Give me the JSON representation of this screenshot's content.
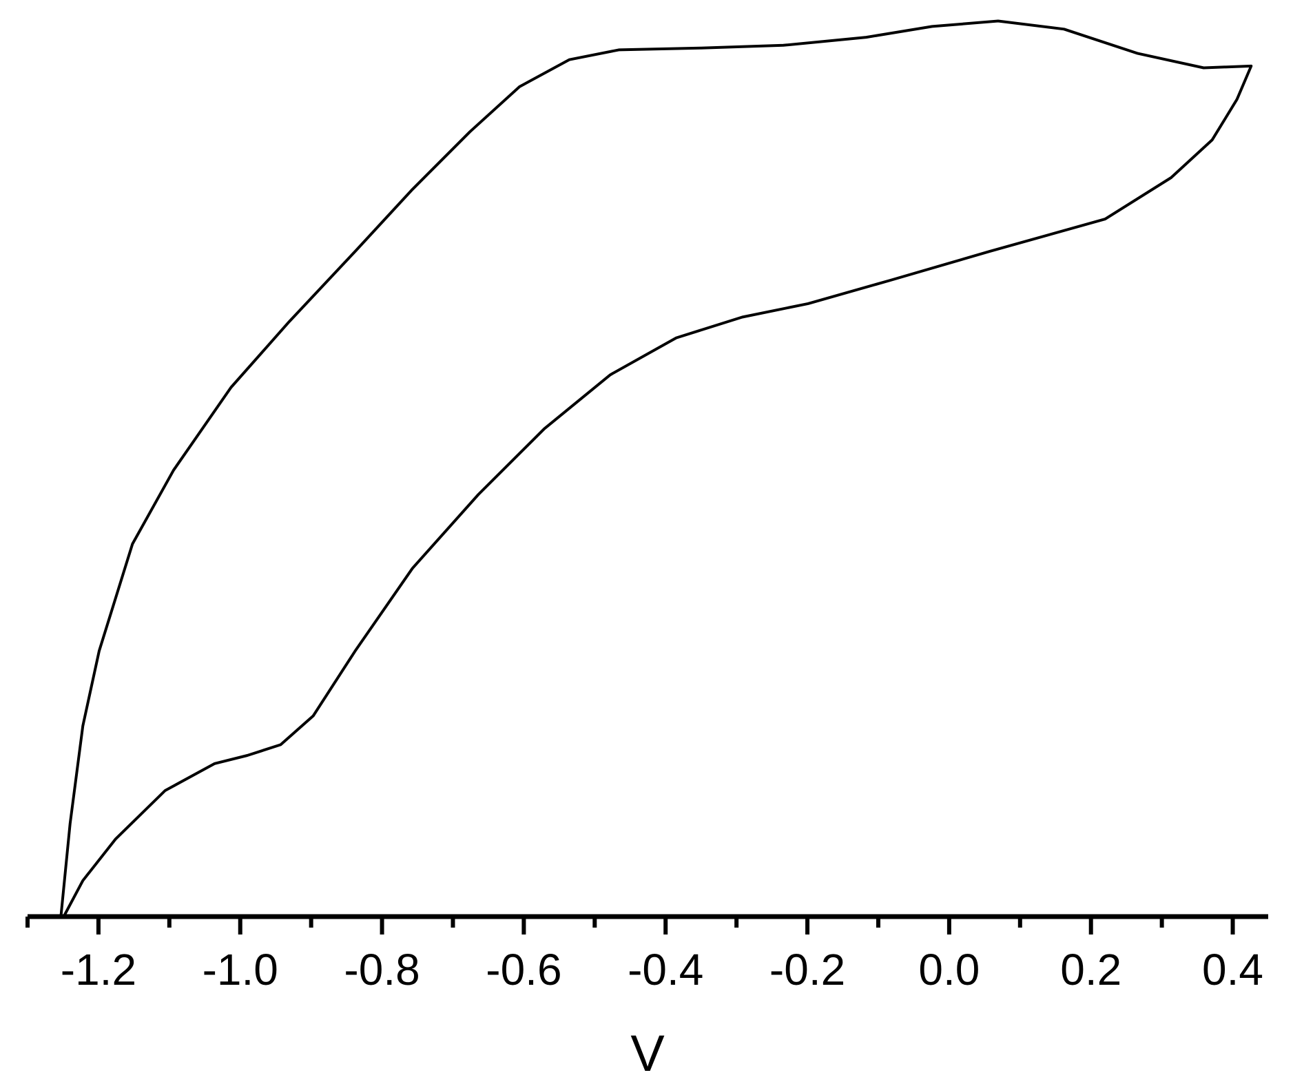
{
  "chart_data": {
    "type": "line",
    "x_label": "V",
    "x": [
      -1.253,
      -1.24,
      -1.222,
      -1.199,
      -1.152,
      -1.094,
      -1.013,
      -0.931,
      -0.838,
      -0.757,
      -0.676,
      -0.606,
      -0.536,
      -0.466,
      -0.35,
      -0.234,
      -0.117,
      -0.024,
      0.069,
      0.162,
      0.266,
      0.359,
      0.426,
      0.406,
      0.371,
      0.313,
      0.22,
      0.057,
      -0.083,
      -0.199,
      -0.292,
      -0.385,
      -0.478,
      -0.571,
      -0.664,
      -0.757,
      -0.838,
      -0.897,
      -0.943,
      -0.99,
      -1.036,
      -1.106,
      -1.176,
      -1.222,
      -1.249
    ],
    "series": [
      {
        "color": "#000000",
        "values": [
          0,
          0.103,
          0.212,
          0.295,
          0.414,
          0.496,
          0.588,
          0.661,
          0.739,
          0.808,
          0.872,
          0.922,
          0.952,
          0.963,
          0.965,
          0.968,
          0.977,
          0.989,
          0.995,
          0.986,
          0.959,
          0.943,
          0.945,
          0.908,
          0.863,
          0.821,
          0.775,
          0.739,
          0.707,
          0.681,
          0.666,
          0.643,
          0.602,
          0.542,
          0.469,
          0.387,
          0.295,
          0.223,
          0.191,
          0.179,
          0.17,
          0.14,
          0.086,
          0.04,
          0
        ]
      }
    ],
    "xlim": [
      -1.3,
      0.45
    ],
    "ylim": [
      0,
      1
    ],
    "xticks": [
      -1.2,
      {
        "value": -1,
        "label": "-1.0"
      },
      -0.8,
      -0.6,
      -0.4,
      -0.2,
      {
        "value": 0,
        "label": "0.0"
      },
      0.2,
      0.4
    ],
    "minor_xticks": [
      -1.3,
      -1.1,
      -0.9,
      -0.7,
      -0.5,
      -0.3,
      -0.1,
      0.1,
      0.3
    ]
  }
}
